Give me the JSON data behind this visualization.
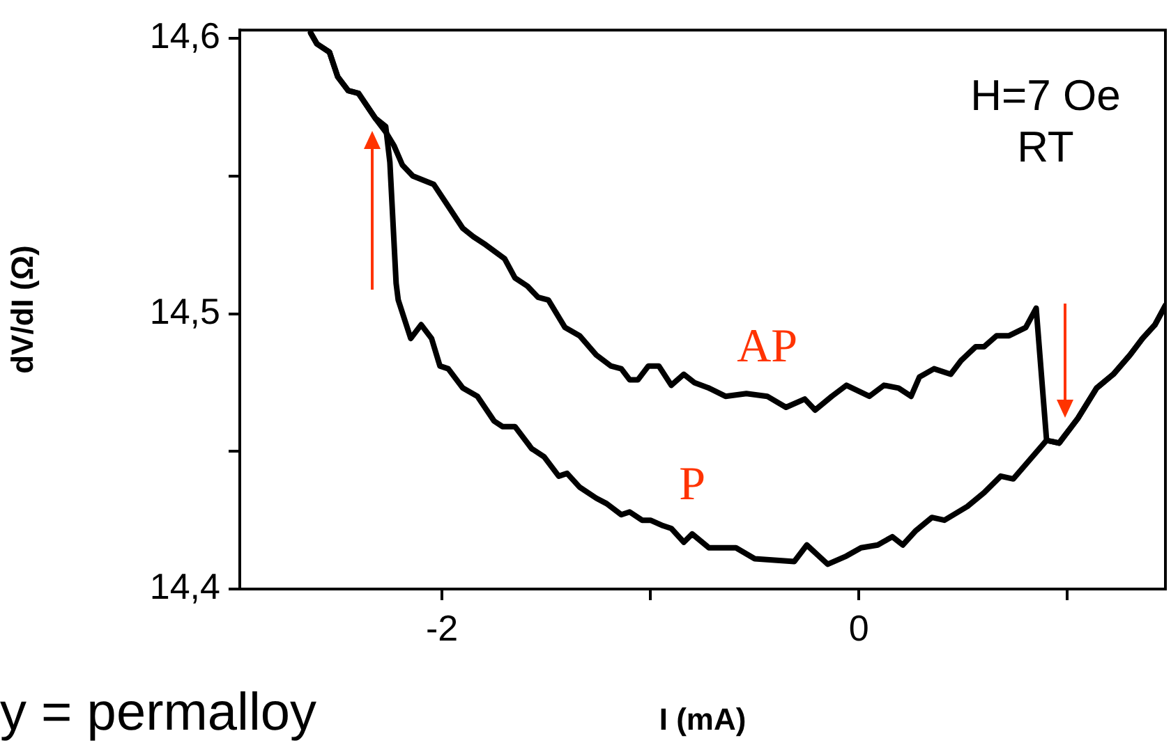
{
  "chart_data": {
    "type": "line",
    "xlabel": "I (mA)",
    "ylabel": "dV/dI (Ω)",
    "annotations": [
      "H=7 Oe\nRT",
      "y = permalloy"
    ],
    "xlim": [
      -2.97,
      1.47
    ],
    "ylim": [
      14.4,
      14.603
    ],
    "xticks": [
      -2,
      {
        "value": -1,
        "label": null
      },
      0,
      {
        "value": 1,
        "label": null
      }
    ],
    "yticks": [
      {
        "value": 14.4,
        "label": "14,4"
      },
      {
        "value": 14.45,
        "label": null
      },
      {
        "value": 14.5,
        "label": "14,5"
      },
      {
        "value": 14.55,
        "label": null
      },
      {
        "value": 14.6,
        "label": "14,6"
      }
    ],
    "grid": false,
    "legend": false,
    "marker": "none",
    "line_style": "solid",
    "series": [
      {
        "name": "AP",
        "color": "#000000",
        "x": [
          -2.63,
          -2.6,
          -2.54,
          -2.5,
          -2.45,
          -2.4,
          -2.32,
          -2.27,
          -2.23,
          -2.19,
          -2.14,
          -2.04,
          -1.97,
          -1.9,
          -1.85,
          -1.79,
          -1.7,
          -1.65,
          -1.59,
          -1.54,
          -1.49,
          -1.41,
          -1.34,
          -1.26,
          -1.19,
          -1.14,
          -1.1,
          -1.06,
          -1.01,
          -0.96,
          -0.9,
          -0.84,
          -0.79,
          -0.72,
          -0.64,
          -0.54,
          -0.44,
          -0.35,
          -0.26,
          -0.21,
          -0.13,
          -0.06,
          0.05,
          0.12,
          0.19,
          0.25,
          0.29,
          0.36,
          0.44,
          0.49,
          0.56,
          0.6,
          0.66,
          0.72,
          0.8,
          0.85,
          0.9,
          0.96,
          1.05,
          1.14,
          1.22,
          1.3,
          1.36,
          1.42,
          1.47
        ],
        "values": [
          14.602,
          14.598,
          14.595,
          14.586,
          14.581,
          14.58,
          14.571,
          14.566,
          14.561,
          14.554,
          14.55,
          14.547,
          14.539,
          14.531,
          14.528,
          14.525,
          14.52,
          14.513,
          14.51,
          14.506,
          14.505,
          14.495,
          14.492,
          14.485,
          14.481,
          14.48,
          14.476,
          14.476,
          14.481,
          14.481,
          14.474,
          14.478,
          14.475,
          14.473,
          14.47,
          14.471,
          14.47,
          14.466,
          14.469,
          14.465,
          14.47,
          14.474,
          14.47,
          14.474,
          14.473,
          14.47,
          14.477,
          14.48,
          14.478,
          14.483,
          14.488,
          14.488,
          14.492,
          14.492,
          14.495,
          14.502,
          14.454,
          14.453,
          14.462,
          14.473,
          14.478,
          14.485,
          14.491,
          14.496,
          14.503
        ]
      },
      {
        "name": "P",
        "color": "#000000",
        "x": [
          -2.63,
          -2.6,
          -2.54,
          -2.5,
          -2.45,
          -2.4,
          -2.32,
          -2.27,
          -2.25,
          -2.22,
          -2.21,
          -2.15,
          -2.1,
          -2.05,
          -2.01,
          -1.97,
          -1.9,
          -1.83,
          -1.75,
          -1.71,
          -1.65,
          -1.57,
          -1.51,
          -1.44,
          -1.4,
          -1.34,
          -1.26,
          -1.21,
          -1.14,
          -1.1,
          -1.04,
          -1.0,
          -0.94,
          -0.9,
          -0.84,
          -0.8,
          -0.72,
          -0.59,
          -0.5,
          -0.31,
          -0.25,
          -0.15,
          -0.06,
          0.01,
          0.09,
          0.16,
          0.21,
          0.27,
          0.35,
          0.41,
          0.52,
          0.6,
          0.68,
          0.74,
          0.82,
          0.9,
          0.96,
          1.05,
          1.14,
          1.22,
          1.3,
          1.36,
          1.42,
          1.47
        ],
        "values": [
          14.602,
          14.598,
          14.595,
          14.586,
          14.581,
          14.58,
          14.571,
          14.568,
          14.555,
          14.511,
          14.505,
          14.491,
          14.496,
          14.491,
          14.481,
          14.48,
          14.473,
          14.47,
          14.461,
          14.459,
          14.459,
          14.451,
          14.448,
          14.441,
          14.442,
          14.437,
          14.433,
          14.431,
          14.427,
          14.428,
          14.425,
          14.425,
          14.423,
          14.422,
          14.417,
          14.42,
          14.415,
          14.415,
          14.411,
          14.41,
          14.416,
          14.409,
          14.412,
          14.415,
          14.416,
          14.419,
          14.416,
          14.421,
          14.426,
          14.425,
          14.43,
          14.435,
          14.441,
          14.44,
          14.447,
          14.454,
          14.453,
          14.462,
          14.473,
          14.478,
          14.485,
          14.491,
          14.496,
          14.503
        ]
      }
    ]
  }
}
